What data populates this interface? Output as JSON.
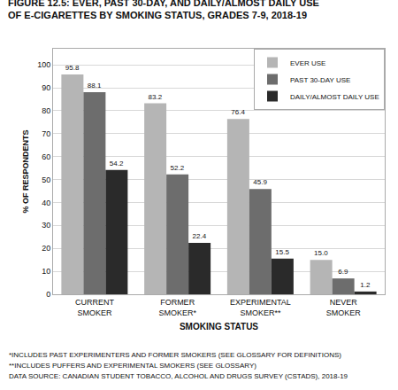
{
  "chart_data": {
    "type": "bar",
    "title": "FIGURE 12.5: EVER, PAST 30-DAY, AND DAILY/ALMOST DAILY USE\nOF E-CIGARETTES BY SMOKING STATUS, GRADES 7-9, 2018-19",
    "categories": [
      "CURRENT\nSMOKER",
      "FORMER\nSMOKER*",
      "EXPERIMENTAL\nSMOKER**",
      "NEVER\nSMOKER"
    ],
    "series": [
      {
        "name": "EVER USE",
        "color": "#b5b5b5",
        "values": [
          95.8,
          83.2,
          76.4,
          15.0
        ],
        "value_labels": [
          "95.8",
          "83.2",
          "76.4",
          "15.0"
        ]
      },
      {
        "name": "PAST 30-DAY USE",
        "color": "#6d6d6d",
        "values": [
          88.1,
          52.2,
          45.9,
          6.9
        ]
      },
      {
        "name": "DAILY/ALMOST DAILY USE",
        "color": "#2a2a2a",
        "values": [
          54.2,
          22.4,
          15.5,
          1.2
        ]
      }
    ],
    "ylabel": "% OF RESPONDENTS",
    "xlabel": "SMOKING STATUS",
    "ylim": [
      0,
      107
    ],
    "yticks": [
      0,
      10,
      20,
      30,
      40,
      50,
      60,
      70,
      80,
      90,
      100
    ],
    "grid": true,
    "legend": "upper right",
    "data_labels": true,
    "annotations": [
      "*INCLUDES PAST EXPERIMENTERS AND FORMER SMOKERS (SEE GLOSSARY FOR DEFINITIONS)",
      "**INCLUDES PUFFERS AND EXPERIMENTAL SMOKERS (SEE GLOSSARY)",
      "DATA SOURCE: CANADIAN STUDENT TOBACCO, ALCOHOL AND DRUGS SURVEY (CSTADS), 2018-19"
    ]
  }
}
